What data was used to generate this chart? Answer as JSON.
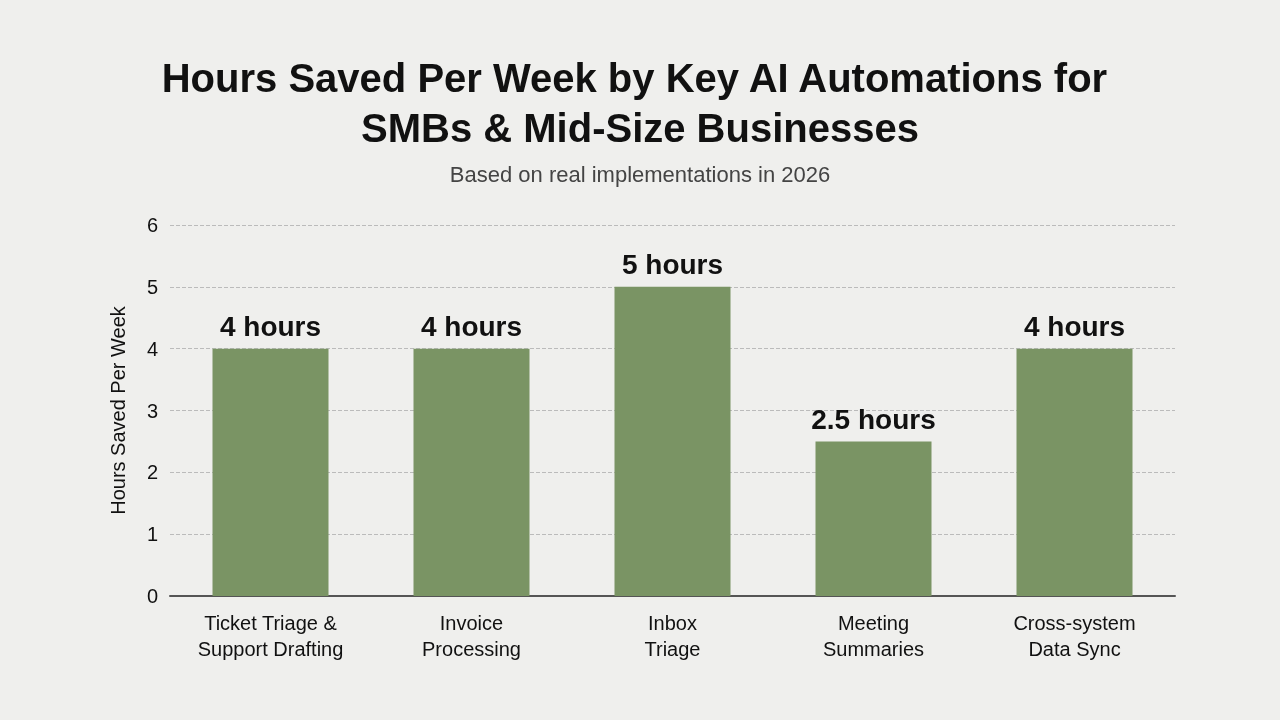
{
  "chart_data": {
    "type": "bar",
    "title": "Hours Saved Per Week by Key AI Automations for SMBs & Mid-Size Businesses",
    "subtitle": "Based on real implementations in 2026",
    "ylabel": "Hours Saved Per Week",
    "categories": [
      "Ticket Triage &\nSupport Drafting",
      "Invoice\nProcessing",
      "Inbox\nTriage",
      "Meeting\nSummaries",
      "Cross-system\nData Sync"
    ],
    "values": [
      4,
      4,
      5,
      2.5,
      4
    ],
    "value_labels": [
      "4 hours",
      "4 hours",
      "5 hours",
      "2.5 hours",
      "4 hours"
    ],
    "color": "#7a9464",
    "ylim": [
      0,
      6
    ],
    "yticks": [
      0,
      1,
      2,
      3,
      4,
      5,
      6
    ],
    "grid": "y"
  }
}
